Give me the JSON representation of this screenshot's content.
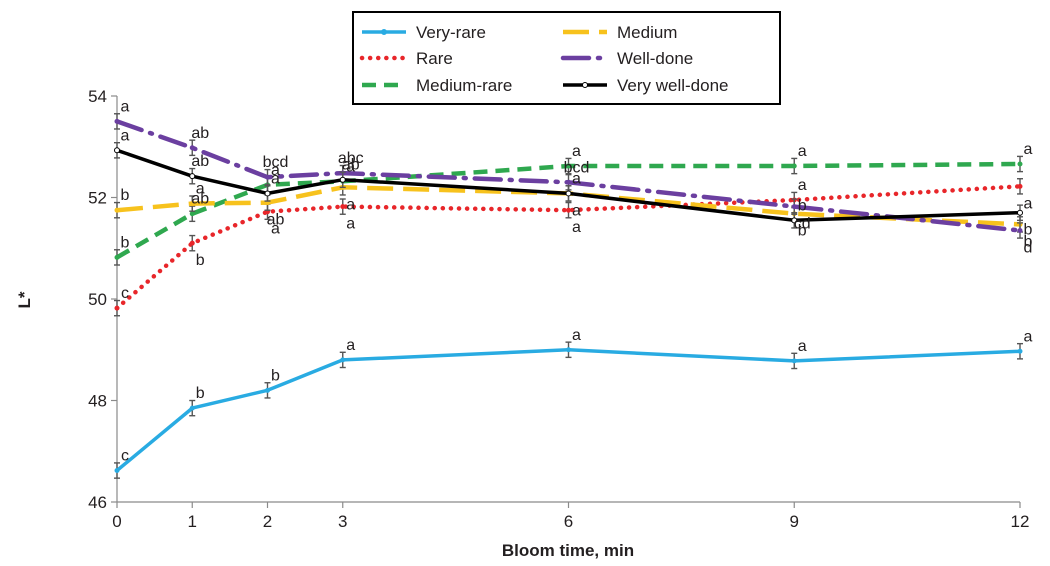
{
  "chart_data": {
    "type": "line",
    "xlabel": "Bloom time, min",
    "ylabel": "L*",
    "x": [
      0,
      1,
      2,
      3,
      6,
      9,
      12
    ],
    "xlim": [
      0,
      12
    ],
    "ylim": [
      46,
      54
    ],
    "xticks": [
      "0",
      "1",
      "2",
      "3",
      "6",
      "9",
      "12"
    ],
    "yticks": [
      "46",
      "48",
      "50",
      "52",
      "54"
    ],
    "grid": false,
    "legend_position": "top-center",
    "series": [
      {
        "name": "Very-rare",
        "color": "#29abe2",
        "style": "solid",
        "values": [
          46.62,
          47.85,
          48.2,
          48.8,
          49.0,
          48.78,
          48.97
        ],
        "error": [
          0.15,
          0.15,
          0.15,
          0.15,
          0.15,
          0.15,
          0.15
        ],
        "letters": [
          "c",
          "b",
          "b",
          "a",
          "a",
          "a",
          "a"
        ]
      },
      {
        "name": "Rare",
        "color": "#e8262a",
        "style": "dotted",
        "values": [
          49.82,
          51.1,
          51.72,
          51.82,
          51.75,
          51.95,
          52.22
        ],
        "error": [
          0.15,
          0.15,
          0.15,
          0.15,
          0.15,
          0.15,
          0.15
        ],
        "letters": [
          "c",
          "b",
          "a",
          "a",
          "a",
          "a",
          "a"
        ]
      },
      {
        "name": "Medium-rare",
        "color": "#2fa84f",
        "style": "dashed",
        "values": [
          50.82,
          51.68,
          52.25,
          52.32,
          52.62,
          52.62,
          52.66
        ],
        "error": [
          0.15,
          0.15,
          0.15,
          0.15,
          0.15,
          0.15,
          0.15
        ],
        "letters": [
          "b",
          "ab",
          "a",
          "a",
          "a",
          "a",
          "a"
        ]
      },
      {
        "name": "Medium",
        "color": "#f7c21d",
        "style": "longdash",
        "values": [
          51.75,
          51.88,
          51.9,
          52.2,
          52.08,
          51.68,
          51.47
        ],
        "error": [
          0.15,
          0.15,
          0.15,
          0.15,
          0.15,
          0.15,
          0.15
        ],
        "letters": [
          "b",
          "a",
          "ab",
          "a",
          "a",
          "b",
          "b"
        ]
      },
      {
        "name": "Well-done",
        "color": "#6b3fa0",
        "style": "dashdot",
        "values": [
          53.5,
          52.98,
          52.4,
          52.48,
          52.3,
          51.82,
          51.35
        ],
        "error": [
          0.15,
          0.15,
          0.15,
          0.15,
          0.15,
          0.15,
          0.15
        ],
        "letters": [
          "a",
          "ab",
          "bcd",
          "abc",
          "bcd",
          "cd",
          "d"
        ]
      },
      {
        "name": "Very well-done",
        "color": "#000000",
        "style": "solid",
        "values": [
          52.93,
          52.42,
          52.08,
          52.35,
          52.08,
          51.55,
          51.7
        ],
        "error": [
          0.15,
          0.15,
          0.15,
          0.15,
          0.15,
          0.15,
          0.15
        ],
        "letters": [
          "a",
          "ab",
          "a",
          "ab",
          "a",
          "b",
          "b"
        ]
      }
    ]
  }
}
